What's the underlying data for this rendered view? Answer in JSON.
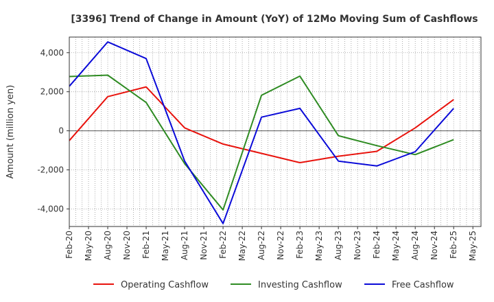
{
  "chart_data": {
    "type": "line",
    "title": "[3396]  Trend of Change in Amount (YoY) of 12Mo Moving Sum of Cashflows",
    "xlabel": "",
    "ylabel": "Amount (million yen)",
    "categories": [
      "Feb-20",
      "May-20",
      "Aug-20",
      "Nov-20",
      "Feb-21",
      "May-21",
      "Aug-21",
      "Nov-21",
      "Feb-22",
      "May-22",
      "Aug-22",
      "Nov-22",
      "Feb-23",
      "May-23",
      "Aug-23",
      "Nov-23",
      "Feb-24",
      "May-24",
      "Aug-24",
      "Nov-24",
      "Feb-25",
      "May-25"
    ],
    "ylim": [
      -4900,
      4800
    ],
    "yticks": [
      -4000,
      -2000,
      0,
      2000,
      4000
    ],
    "ytick_labels": [
      "-4,000",
      "-2,000",
      "0",
      "2,000",
      "4,000"
    ],
    "grid": true,
    "legend_position": "bottom",
    "series": [
      {
        "name": "Operating Cashflow",
        "color": "#e8120c",
        "points": [
          [
            0,
            -500
          ],
          [
            2,
            1750
          ],
          [
            4,
            2250
          ],
          [
            6,
            150
          ],
          [
            8,
            -680
          ],
          [
            12,
            -1630
          ],
          [
            14,
            -1300
          ],
          [
            16,
            -1050
          ],
          [
            18,
            150
          ],
          [
            20,
            1600
          ]
        ]
      },
      {
        "name": "Investing Cashflow",
        "color": "#2e8b22",
        "points": [
          [
            0,
            2780
          ],
          [
            2,
            2850
          ],
          [
            4,
            1450
          ],
          [
            6,
            -1680
          ],
          [
            8,
            -4050
          ],
          [
            10,
            1820
          ],
          [
            12,
            2800
          ],
          [
            14,
            -250
          ],
          [
            16,
            -760
          ],
          [
            18,
            -1220
          ],
          [
            20,
            -450
          ]
        ]
      },
      {
        "name": "Free Cashflow",
        "color": "#0a0ad8",
        "points": [
          [
            0,
            2280
          ],
          [
            2,
            4550
          ],
          [
            4,
            3700
          ],
          [
            6,
            -1550
          ],
          [
            8,
            -4750
          ],
          [
            10,
            700
          ],
          [
            12,
            1150
          ],
          [
            14,
            -1550
          ],
          [
            16,
            -1800
          ],
          [
            18,
            -1070
          ],
          [
            20,
            1150
          ]
        ]
      }
    ]
  }
}
